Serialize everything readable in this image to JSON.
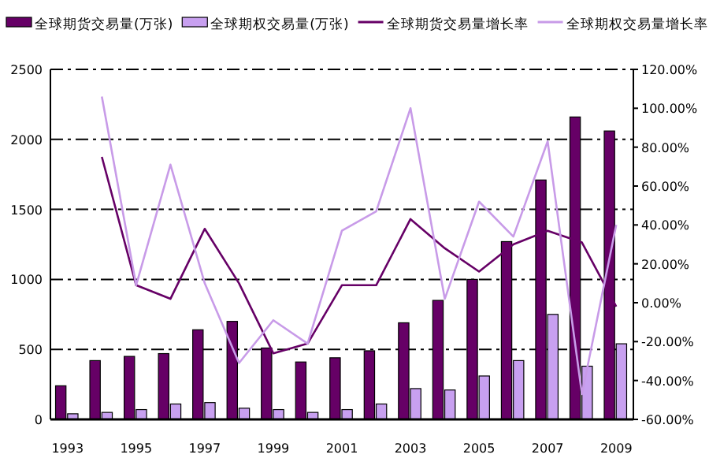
{
  "chart_data": {
    "type": "bar",
    "categories": [
      "1993",
      null,
      "1995",
      null,
      "1997",
      null,
      "1999",
      null,
      "2001",
      null,
      "2003",
      null,
      "2005",
      null,
      "2007",
      null,
      "2009"
    ],
    "series": [
      {
        "name": "全球期货交易量(万张)",
        "color": "#660066",
        "values": [
          240,
          420,
          450,
          470,
          640,
          700,
          510,
          410,
          440,
          490,
          690,
          850,
          1000,
          1270,
          1710,
          2160,
          2060
        ]
      },
      {
        "name": "全球期权交易量(万张)",
        "color": "#c8a0f0",
        "values": [
          40,
          50,
          70,
          110,
          120,
          80,
          70,
          50,
          70,
          110,
          220,
          210,
          310,
          420,
          750,
          380,
          540
        ]
      },
      {
        "name": "全球期货交易量增长率",
        "type": "line",
        "axis": "y2",
        "color": "#660066",
        "values": [
          null,
          75,
          9,
          2,
          38,
          10,
          -26,
          -21,
          9,
          9,
          43,
          28,
          16,
          30,
          37,
          31,
          -2
        ]
      },
      {
        "name": "全球期权交易量增长率",
        "type": "line",
        "axis": "y2",
        "color": "#c89be8",
        "values": [
          null,
          106,
          9,
          71,
          10,
          -31,
          -9,
          -21,
          37,
          47,
          100,
          2,
          52,
          34,
          83,
          -47,
          40
        ]
      }
    ],
    "ylim": [
      0,
      2500
    ],
    "yticks": [
      0,
      500,
      1000,
      1500,
      2000,
      2500
    ],
    "y2lim": [
      -60,
      120
    ],
    "y2ticks": [
      {
        "value": -60,
        "label": "-60.00%"
      },
      {
        "value": -40,
        "label": "-40.00%"
      },
      {
        "value": -20,
        "label": "-20.00%"
      },
      {
        "value": 0,
        "label": "0.00%"
      },
      {
        "value": 20,
        "label": "20.00%"
      },
      {
        "value": 40,
        "label": "40.00%"
      },
      {
        "value": 60,
        "label": "60.00%"
      },
      {
        "value": 80,
        "label": "80.00%"
      },
      {
        "value": 100,
        "label": "100.00%"
      },
      {
        "value": 120,
        "label": "120.00%"
      }
    ],
    "grid": "y",
    "legend": "top",
    "marker": "none",
    "line_style": "solid"
  }
}
